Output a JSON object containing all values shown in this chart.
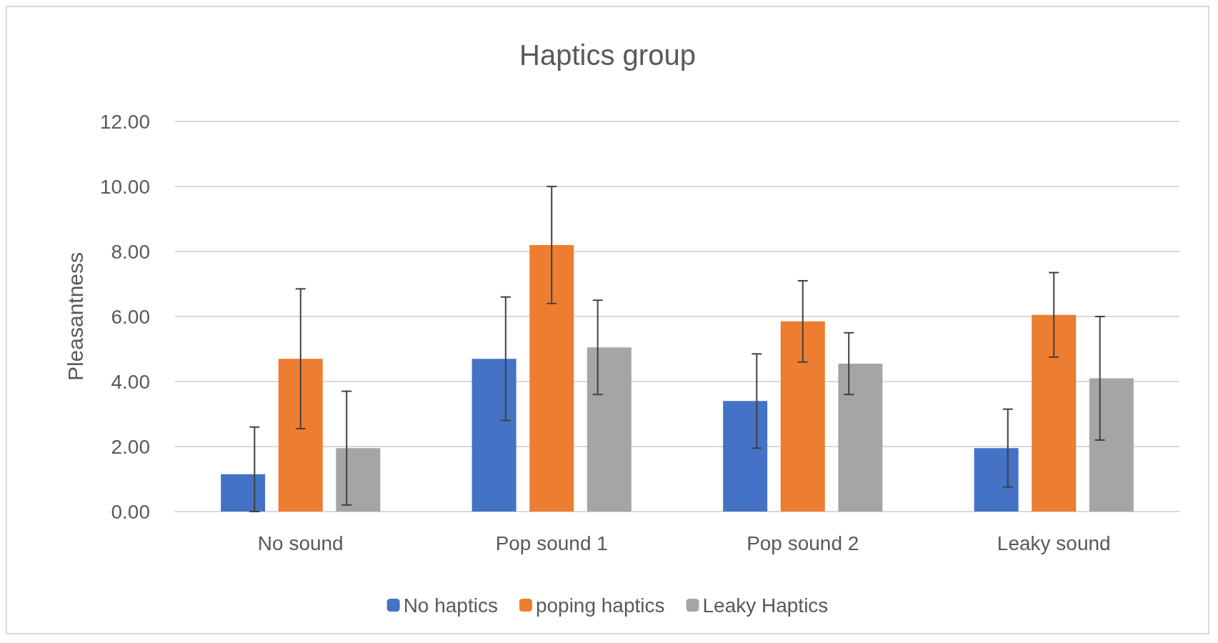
{
  "chart_data": {
    "type": "bar",
    "title": "Haptics group",
    "ylabel": "Pleasantness",
    "categories": [
      "No sound",
      "Pop sound 1",
      "Pop sound 2",
      "Leaky sound"
    ],
    "series": [
      {
        "name": "No haptics",
        "color": "#4472c4",
        "values": [
          1.15,
          4.7,
          3.4,
          1.95
        ],
        "errors": [
          [
            0,
            2.6
          ],
          1.9,
          1.45,
          1.2
        ]
      },
      {
        "name": "poping haptics",
        "color": "#ed7d31",
        "values": [
          4.7,
          8.2,
          5.85,
          6.05
        ],
        "errors": [
          2.15,
          1.8,
          1.25,
          1.3
        ]
      },
      {
        "name": "Leaky Haptics",
        "color": "#a5a5a5",
        "values": [
          1.95,
          5.05,
          4.55,
          4.1
        ],
        "errors": [
          1.75,
          1.45,
          0.95,
          1.9
        ]
      }
    ],
    "ylim": [
      0,
      12
    ],
    "yticks": [
      {
        "value": 0,
        "label": "0.00"
      },
      {
        "value": 2,
        "label": "2.00"
      },
      {
        "value": 4,
        "label": "4.00"
      },
      {
        "value": 6,
        "label": "6.00"
      },
      {
        "value": 8,
        "label": "8.00"
      },
      {
        "value": 10,
        "label": "10.00"
      },
      {
        "value": 12,
        "label": "12.00"
      }
    ],
    "grid": "y",
    "legend": "bottom"
  }
}
